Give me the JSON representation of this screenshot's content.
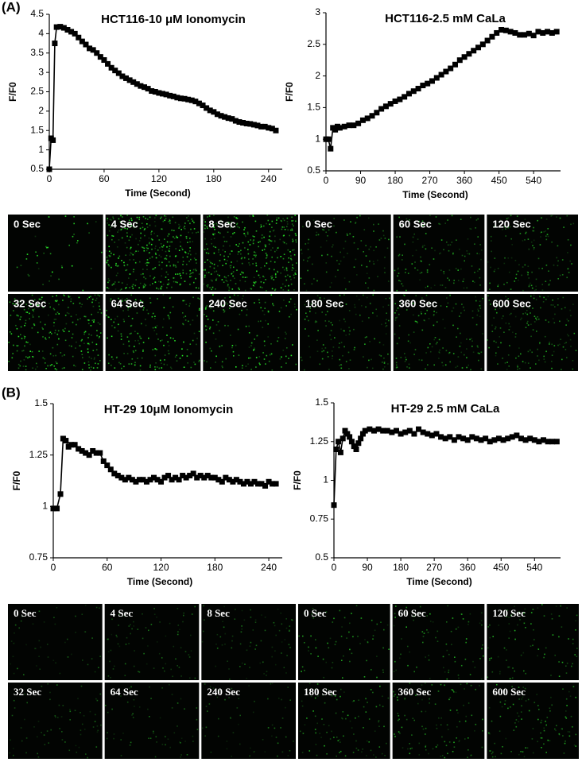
{
  "figure": {
    "panel_labels": [
      "(A)",
      "(B)"
    ],
    "image_labels": [
      [
        "0 Sec",
        "4 Sec",
        "8 Sec",
        "32 Sec",
        "64 Sec",
        "240 Sec"
      ],
      [
        "0 Sec",
        "60 Sec",
        "120 Sec",
        "180 Sec",
        "360 Sec",
        "600 Sec"
      ],
      [
        "0 Sec",
        "4 Sec",
        "8 Sec",
        "32 Sec",
        "64 Sec",
        "240 Sec"
      ],
      [
        "0 Sec",
        "60 Sec",
        "120 Sec",
        "180 Sec",
        "360 Sec",
        "600 Sec"
      ]
    ]
  },
  "chart_data": [
    {
      "type": "line",
      "title": "HCT116-10 μM Ionomycin",
      "x_label": "Time (Second)",
      "y_label": "F/F0",
      "color": "#000000",
      "x": [
        0,
        2,
        4,
        6,
        8,
        12,
        16,
        20,
        24,
        28,
        32,
        36,
        40,
        44,
        48,
        52,
        56,
        60,
        64,
        68,
        72,
        76,
        80,
        84,
        88,
        92,
        96,
        100,
        104,
        108,
        112,
        116,
        120,
        124,
        128,
        132,
        136,
        140,
        144,
        148,
        152,
        156,
        160,
        164,
        168,
        172,
        176,
        180,
        184,
        188,
        192,
        196,
        200,
        204,
        208,
        212,
        216,
        220,
        224,
        228,
        232,
        236,
        240,
        244,
        248
      ],
      "values": [
        0.5,
        1.3,
        1.25,
        3.75,
        4.17,
        4.18,
        4.15,
        4.1,
        4.05,
        4.0,
        3.9,
        3.8,
        3.72,
        3.62,
        3.58,
        3.5,
        3.4,
        3.32,
        3.22,
        3.12,
        3.05,
        2.98,
        2.9,
        2.85,
        2.8,
        2.75,
        2.7,
        2.65,
        2.62,
        2.58,
        2.52,
        2.5,
        2.47,
        2.45,
        2.43,
        2.4,
        2.38,
        2.35,
        2.33,
        2.32,
        2.3,
        2.28,
        2.25,
        2.2,
        2.15,
        2.08,
        2.02,
        1.98,
        1.92,
        1.88,
        1.85,
        1.82,
        1.8,
        1.75,
        1.72,
        1.7,
        1.68,
        1.67,
        1.65,
        1.63,
        1.6,
        1.6,
        1.57,
        1.55,
        1.5
      ],
      "xlim": [
        0,
        255
      ],
      "xticks": [
        0,
        60,
        120,
        180,
        240
      ],
      "ylim": [
        0.5,
        4.5
      ],
      "yticks": [
        0.5,
        1,
        1.5,
        2,
        2.5,
        3,
        3.5,
        4,
        4.5
      ]
    },
    {
      "type": "line",
      "title": "HCT116-2.5 mM CaLa",
      "x_label": "Time (Second)",
      "y_label": "F/F0",
      "color": "#000000",
      "x": [
        0,
        6,
        12,
        18,
        24,
        30,
        36,
        48,
        60,
        72,
        84,
        96,
        108,
        120,
        132,
        144,
        156,
        168,
        180,
        192,
        204,
        216,
        228,
        240,
        252,
        264,
        276,
        288,
        300,
        312,
        324,
        336,
        348,
        360,
        372,
        384,
        396,
        408,
        420,
        432,
        444,
        456,
        468,
        480,
        492,
        504,
        516,
        528,
        540,
        552,
        564,
        576,
        588,
        600
      ],
      "values": [
        1.0,
        1.0,
        0.85,
        1.18,
        1.15,
        1.2,
        1.18,
        1.2,
        1.22,
        1.22,
        1.25,
        1.3,
        1.33,
        1.37,
        1.42,
        1.48,
        1.52,
        1.56,
        1.6,
        1.63,
        1.67,
        1.72,
        1.76,
        1.8,
        1.85,
        1.88,
        1.92,
        1.97,
        2.02,
        2.07,
        2.12,
        2.18,
        2.25,
        2.3,
        2.35,
        2.4,
        2.45,
        2.5,
        2.56,
        2.62,
        2.68,
        2.73,
        2.72,
        2.7,
        2.68,
        2.65,
        2.65,
        2.67,
        2.64,
        2.7,
        2.68,
        2.7,
        2.68,
        2.7
      ],
      "xlim": [
        0,
        610
      ],
      "xticks": [
        0,
        90,
        180,
        270,
        360,
        450,
        540
      ],
      "ylim": [
        0.5,
        3
      ],
      "yticks": [
        0.5,
        1,
        1.5,
        2,
        2.5,
        3
      ]
    },
    {
      "type": "line",
      "title": "HT-29 10μM Ionomycin",
      "x_label": "Time (Second)",
      "y_label": "F/F0",
      "color": "#000000",
      "x": [
        0,
        4,
        8,
        11,
        14,
        17,
        20,
        24,
        28,
        32,
        36,
        40,
        44,
        48,
        52,
        56,
        60,
        64,
        68,
        72,
        76,
        80,
        84,
        88,
        92,
        96,
        100,
        104,
        108,
        112,
        116,
        120,
        124,
        128,
        132,
        136,
        140,
        144,
        148,
        152,
        156,
        160,
        164,
        168,
        172,
        176,
        180,
        184,
        188,
        192,
        196,
        200,
        204,
        208,
        212,
        216,
        220,
        224,
        228,
        232,
        236,
        240,
        244,
        248
      ],
      "values": [
        0.99,
        0.99,
        1.06,
        1.33,
        1.32,
        1.29,
        1.3,
        1.3,
        1.28,
        1.27,
        1.26,
        1.25,
        1.27,
        1.26,
        1.26,
        1.22,
        1.2,
        1.18,
        1.16,
        1.15,
        1.14,
        1.13,
        1.14,
        1.13,
        1.12,
        1.13,
        1.13,
        1.12,
        1.13,
        1.14,
        1.13,
        1.12,
        1.14,
        1.15,
        1.13,
        1.14,
        1.13,
        1.15,
        1.14,
        1.15,
        1.16,
        1.14,
        1.15,
        1.14,
        1.15,
        1.14,
        1.14,
        1.13,
        1.12,
        1.14,
        1.13,
        1.12,
        1.13,
        1.12,
        1.11,
        1.12,
        1.11,
        1.12,
        1.11,
        1.11,
        1.1,
        1.12,
        1.11,
        1.11
      ],
      "xlim": [
        0,
        255
      ],
      "xticks": [
        0,
        60,
        120,
        180,
        240
      ],
      "ylim": [
        0.75,
        1.5
      ],
      "yticks": [
        0.75,
        1,
        1.25,
        1.5
      ]
    },
    {
      "type": "line",
      "title": "HT-29 2.5 mM CaLa",
      "x_label": "Time (Second)",
      "y_label": "F/F0",
      "color": "#000000",
      "x": [
        0,
        6,
        12,
        18,
        24,
        30,
        36,
        42,
        48,
        54,
        60,
        66,
        72,
        78,
        84,
        96,
        108,
        120,
        132,
        144,
        156,
        168,
        180,
        192,
        204,
        216,
        228,
        240,
        252,
        264,
        276,
        288,
        300,
        312,
        324,
        336,
        348,
        360,
        372,
        384,
        396,
        408,
        420,
        432,
        444,
        456,
        468,
        480,
        492,
        504,
        516,
        528,
        540,
        552,
        564,
        576,
        588,
        600
      ],
      "values": [
        0.84,
        1.2,
        1.25,
        1.18,
        1.27,
        1.32,
        1.3,
        1.28,
        1.25,
        1.22,
        1.2,
        1.24,
        1.27,
        1.3,
        1.32,
        1.33,
        1.32,
        1.33,
        1.32,
        1.32,
        1.31,
        1.32,
        1.3,
        1.31,
        1.32,
        1.3,
        1.33,
        1.31,
        1.3,
        1.29,
        1.3,
        1.28,
        1.27,
        1.28,
        1.26,
        1.28,
        1.27,
        1.26,
        1.28,
        1.27,
        1.26,
        1.27,
        1.25,
        1.26,
        1.27,
        1.26,
        1.27,
        1.28,
        1.29,
        1.27,
        1.26,
        1.27,
        1.26,
        1.25,
        1.26,
        1.25,
        1.25,
        1.25
      ],
      "xlim": [
        0,
        610
      ],
      "xticks": [
        0,
        90,
        180,
        270,
        360,
        450,
        540
      ],
      "ylim": [
        0.5,
        1.5
      ],
      "yticks": [
        0.5,
        0.75,
        1,
        1.25,
        1.5
      ]
    }
  ]
}
